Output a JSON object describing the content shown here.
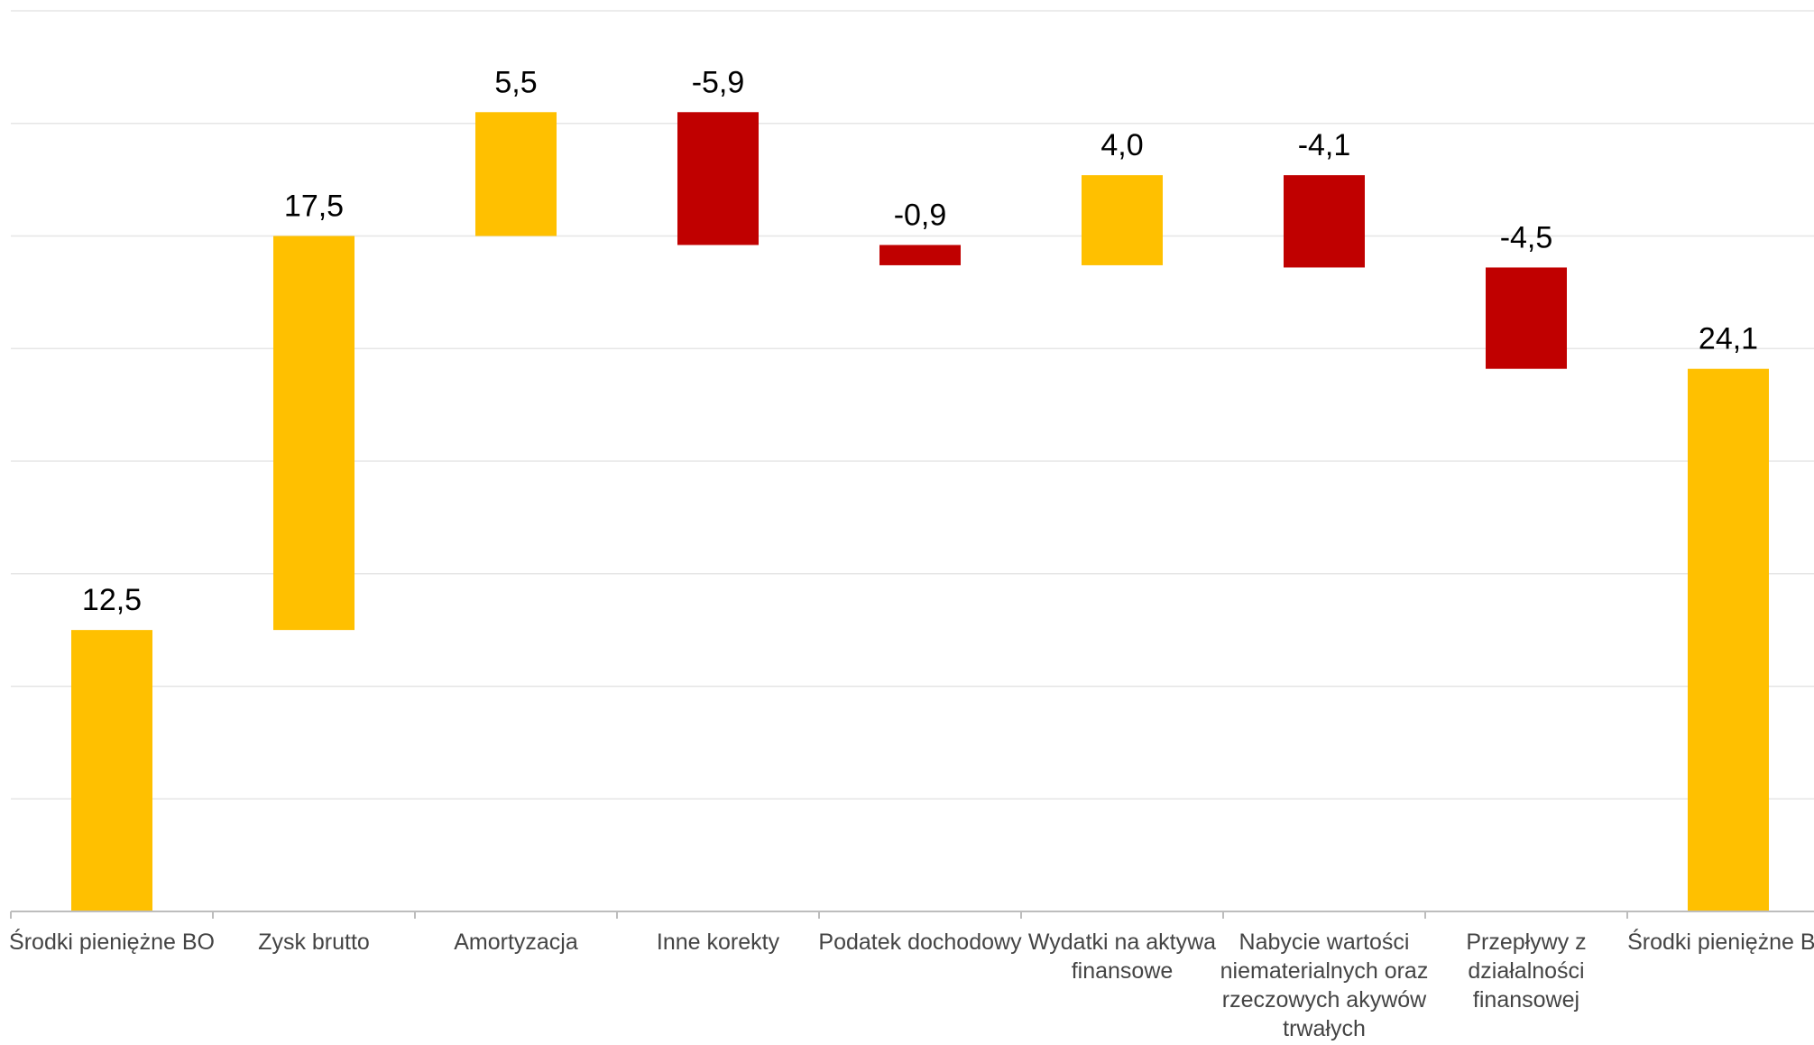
{
  "chart_data": {
    "type": "waterfall",
    "title": "",
    "xlabel": "",
    "ylabel": "",
    "ylim": [
      0,
      40
    ],
    "grid": true,
    "legend": "none",
    "categories": [
      [
        "Środki pieniężne BO"
      ],
      [
        "Zysk brutto"
      ],
      [
        "Amortyzacja"
      ],
      [
        "Inne korekty"
      ],
      [
        "Podatek dochodowy"
      ],
      [
        "Wydatki na aktywa",
        "finansowe"
      ],
      [
        "Nabycie wartości",
        "niematerialnych oraz",
        "rzeczowych akywów",
        "trwałych"
      ],
      [
        "Przepływy z",
        "działalności",
        "finansowej"
      ],
      [
        "Środki pieniężne BZ"
      ]
    ],
    "values": [
      12.5,
      17.5,
      5.5,
      -5.9,
      -0.9,
      4.0,
      -4.1,
      -4.5,
      24.1
    ],
    "value_labels": [
      "12,5",
      "17,5",
      "5,5",
      "-5,9",
      "-0,9",
      "4,0",
      "-4,1",
      "-4,5",
      "24,1"
    ],
    "is_total": [
      true,
      false,
      false,
      false,
      false,
      false,
      false,
      false,
      true
    ],
    "colors": {
      "increase": "#FFC000",
      "decrease": "#C00000",
      "total": "#FFC000"
    }
  }
}
